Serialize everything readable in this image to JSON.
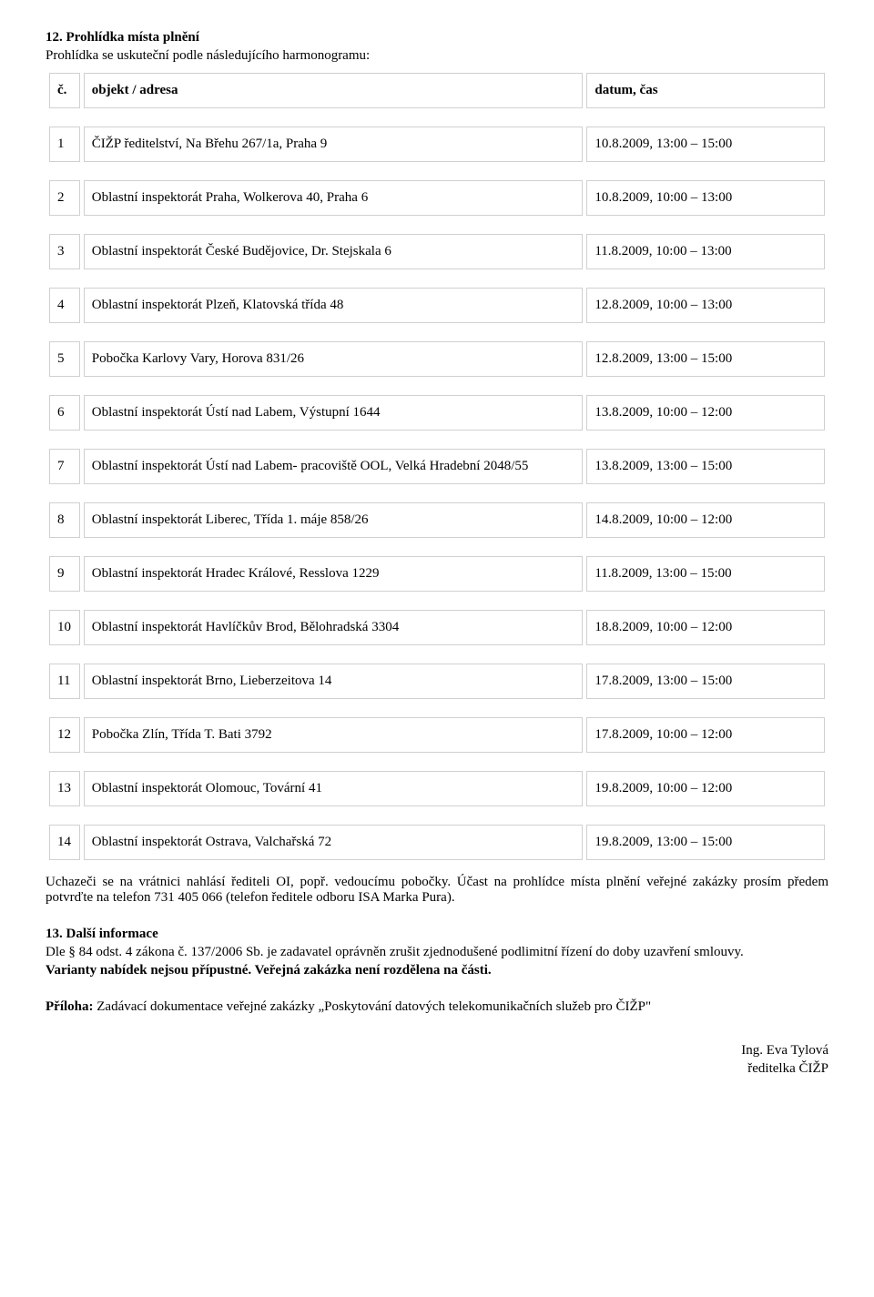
{
  "section12": {
    "title": "12. Prohlídka místa plnění",
    "intro": "Prohlídka se uskuteční podle následujícího harmonogramu:",
    "headers": {
      "num": "č.",
      "obj": "objekt / adresa",
      "date": "datum, čas"
    },
    "rows": [
      {
        "n": "1",
        "o": "ČIŽP ředitelství, Na Břehu 267/1a, Praha 9",
        "d": "10.8.2009, 13:00 – 15:00"
      },
      {
        "n": "2",
        "o": "Oblastní inspektorát Praha, Wolkerova 40, Praha 6",
        "d": "10.8.2009, 10:00 – 13:00"
      },
      {
        "n": "3",
        "o": "Oblastní inspektorát České Budějovice, Dr. Stejskala 6",
        "d": "11.8.2009, 10:00 – 13:00"
      },
      {
        "n": "4",
        "o": "Oblastní inspektorát Plzeň, Klatovská třída 48",
        "d": "12.8.2009, 10:00 – 13:00"
      },
      {
        "n": "5",
        "o": "Pobočka Karlovy Vary, Horova 831/26",
        "d": "12.8.2009, 13:00 – 15:00"
      },
      {
        "n": "6",
        "o": "Oblastní inspektorát Ústí nad Labem, Výstupní 1644",
        "d": "13.8.2009, 10:00 – 12:00"
      },
      {
        "n": "7",
        "o": "Oblastní inspektorát Ústí nad Labem- pracoviště OOL, Velká Hradební 2048/55",
        "d": "13.8.2009, 13:00 – 15:00"
      },
      {
        "n": "8",
        "o": "Oblastní inspektorát Liberec, Třída 1. máje 858/26",
        "d": "14.8.2009, 10:00 – 12:00"
      },
      {
        "n": "9",
        "o": "Oblastní inspektorát Hradec Králové, Resslova 1229",
        "d": "11.8.2009, 13:00 – 15:00"
      },
      {
        "n": "10",
        "o": "Oblastní inspektorát Havlíčkův Brod, Bělohradská 3304",
        "d": "18.8.2009, 10:00 – 12:00"
      },
      {
        "n": "11",
        "o": "Oblastní inspektorát Brno, Lieberzeitova 14",
        "d": "17.8.2009, 13:00 – 15:00"
      },
      {
        "n": "12",
        "o": "Pobočka Zlín, Třída T. Bati 3792",
        "d": "17.8.2009, 10:00 – 12:00"
      },
      {
        "n": "13",
        "o": "Oblastní inspektorát Olomouc, Tovární 41",
        "d": "19.8.2009, 10:00 – 12:00"
      },
      {
        "n": "14",
        "o": "Oblastní inspektorát Ostrava, Valchařská 72",
        "d": "19.8.2009, 13:00 – 15:00"
      }
    ],
    "footer": "Uchazeči se na vrátnici nahlásí řediteli OI, popř. vedoucímu pobočky. Účast na prohlídce místa plnění veřejné zakázky prosím předem potvrďte na telefon 731 405 066 (telefon ředitele odboru ISA Marka Pura)."
  },
  "section13": {
    "title": "13. Další informace",
    "p1": "Dle § 84 odst. 4 zákona č. 137/2006 Sb. je zadavatel oprávněn zrušit zjednodušené podlimitní řízení do doby uzavření smlouvy.",
    "p2": "Varianty nabídek nejsou přípustné. Veřejná zakázka není rozdělena na části."
  },
  "attachment": {
    "label": "Příloha:",
    "text": " Zadávací dokumentace veřejné zakázky „Poskytování datových telekomunikačních služeb pro ČIŽP\""
  },
  "signature": {
    "name": "Ing. Eva Tylová",
    "role": "ředitelka ČIŽP"
  }
}
